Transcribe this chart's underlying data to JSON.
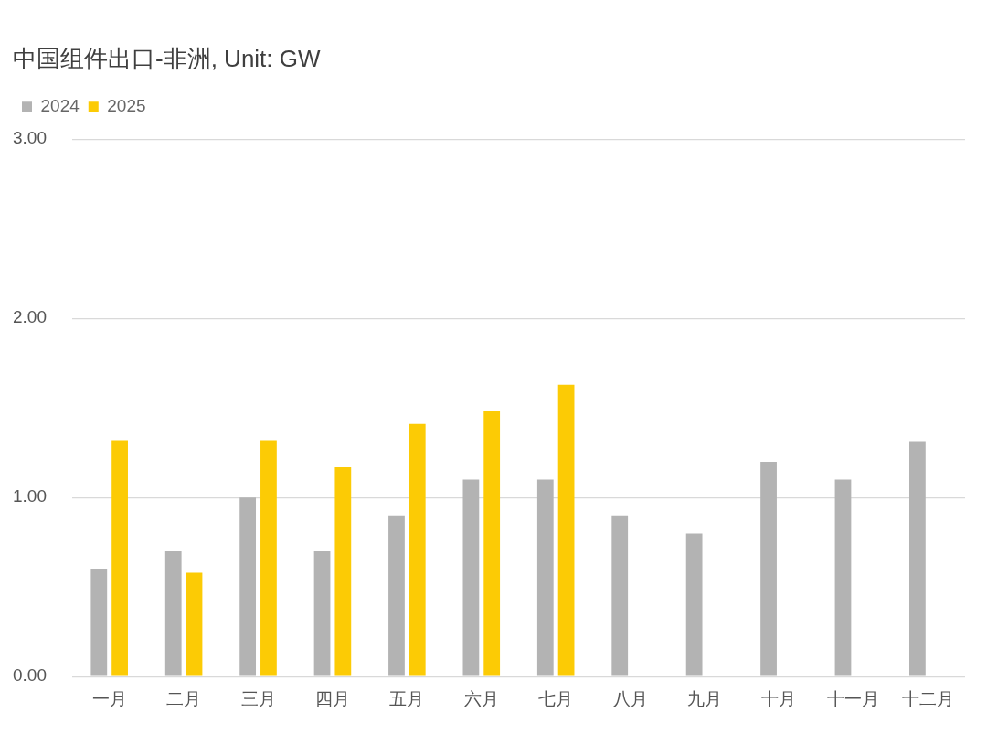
{
  "chart_data": {
    "type": "bar",
    "title": "中国组件出口-非洲, Unit: GW",
    "categories": [
      "一月",
      "二月",
      "三月",
      "四月",
      "五月",
      "六月",
      "七月",
      "八月",
      "九月",
      "十月",
      "十一月",
      "十二月"
    ],
    "series": [
      {
        "name": "2024",
        "color": "#b3b3b3",
        "values": [
          0.6,
          0.7,
          1.0,
          0.7,
          0.9,
          1.1,
          1.1,
          0.9,
          0.8,
          1.2,
          1.1,
          1.31
        ]
      },
      {
        "name": "2025",
        "color": "#fccb05",
        "values": [
          1.32,
          0.58,
          1.32,
          1.17,
          1.41,
          1.48,
          1.63,
          null,
          null,
          null,
          null,
          null
        ]
      }
    ],
    "ylim": [
      0,
      3
    ],
    "yticks": [
      {
        "value": 0,
        "label": "0.00"
      },
      {
        "value": 1,
        "label": "1.00"
      },
      {
        "value": 2,
        "label": "2.00"
      },
      {
        "value": 3,
        "label": "3.00"
      }
    ],
    "grid": "y",
    "legend": "top left"
  }
}
